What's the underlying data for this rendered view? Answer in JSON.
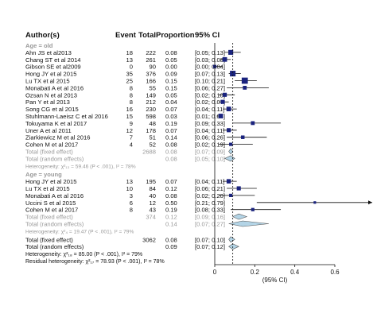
{
  "chart_data": {
    "type": "forest",
    "headers": {
      "study": "Author(s)",
      "event": "Event",
      "total": "Total",
      "proportion": "Proportion",
      "ci": "95% CI"
    },
    "axis": {
      "xlim": [
        0,
        0.6
      ],
      "ticks": [
        "0",
        "0.2",
        "0.4",
        "0.6"
      ],
      "tick_values": [
        0,
        0.2,
        0.4,
        0.6
      ],
      "label": "(95% CI)",
      "overall_estimate": 0.09
    },
    "groups": [
      {
        "name": "Age = old",
        "studies": [
          {
            "study": "Ahn JS et al2013",
            "event": "18",
            "total": "222",
            "prop": "0.08",
            "ci": "[0.05; 0.13]",
            "est": 0.08,
            "lo": 0.05,
            "hi": 0.13,
            "weight": 0.6
          },
          {
            "study": "Chang ST et al 2014",
            "event": "13",
            "total": "261",
            "prop": "0.05",
            "ci": "[0.03; 0.08]",
            "est": 0.05,
            "lo": 0.03,
            "hi": 0.08,
            "weight": 0.55
          },
          {
            "study": "Gibson SE et al2009",
            "event": "0",
            "total": "90",
            "prop": "0.00",
            "ci": "[0.00; 0.04]",
            "est": 0.0,
            "lo": 0.0,
            "hi": 0.04,
            "weight": 0.3
          },
          {
            "study": "Hong JY et al 2015",
            "event": "35",
            "total": "376",
            "prop": "0.09",
            "ci": "[0.07; 0.13]",
            "est": 0.09,
            "lo": 0.07,
            "hi": 0.13,
            "weight": 0.75
          },
          {
            "study": "Lu TX et al 2015",
            "event": "25",
            "total": "166",
            "prop": "0.15",
            "ci": "[0.10; 0.21]",
            "est": 0.15,
            "lo": 0.1,
            "hi": 0.21,
            "weight": 0.85
          },
          {
            "study": "Monabati A et al 2016",
            "event": "8",
            "total": "55",
            "prop": "0.15",
            "ci": "[0.06; 0.27]",
            "est": 0.15,
            "lo": 0.06,
            "hi": 0.27,
            "weight": 0.4
          },
          {
            "study": "Ozsan N et al 2013",
            "event": "8",
            "total": "149",
            "prop": "0.05",
            "ci": "[0.02; 0.10]",
            "est": 0.05,
            "lo": 0.02,
            "hi": 0.1,
            "weight": 0.45
          },
          {
            "study": "Pan Y et al 2013",
            "event": "8",
            "total": "212",
            "prop": "0.04",
            "ci": "[0.02; 0.07]",
            "est": 0.04,
            "lo": 0.02,
            "hi": 0.07,
            "weight": 0.45
          },
          {
            "study": "Song CG et al 2015",
            "event": "16",
            "total": "230",
            "prop": "0.07",
            "ci": "[0.04; 0.11]",
            "est": 0.07,
            "lo": 0.04,
            "hi": 0.11,
            "weight": 0.55
          },
          {
            "study": "Stuhlmann-Laeisz C et al 2016",
            "event": "15",
            "total": "598",
            "prop": "0.03",
            "ci": "[0.01; 0.04]",
            "est": 0.03,
            "lo": 0.01,
            "hi": 0.04,
            "weight": 0.55
          },
          {
            "study": "Tokuyama K et al 2017",
            "event": "9",
            "total": "48",
            "prop": "0.19",
            "ci": "[0.09; 0.33]",
            "est": 0.19,
            "lo": 0.09,
            "hi": 0.33,
            "weight": 0.4
          },
          {
            "study": "Uner A et al 2011",
            "event": "12",
            "total": "178",
            "prop": "0.07",
            "ci": "[0.04; 0.11]",
            "est": 0.07,
            "lo": 0.04,
            "hi": 0.11,
            "weight": 0.45
          },
          {
            "study": "Ziarkiewicz M et al 2016",
            "event": "7",
            "total": "51",
            "prop": "0.14",
            "ci": "[0.06; 0.26]",
            "est": 0.14,
            "lo": 0.06,
            "hi": 0.26,
            "weight": 0.35
          },
          {
            "study": "Cohen M et al 2017",
            "event": "4",
            "total": "52",
            "prop": "0.08",
            "ci": "[0.02; 0.19]",
            "est": 0.08,
            "lo": 0.02,
            "hi": 0.19,
            "weight": 0.3
          }
        ],
        "fixed": {
          "label": "Total (fixed effect)",
          "total": "2688",
          "prop": "0.08",
          "ci": "[0.07; 0.09]",
          "est": 0.08,
          "lo": 0.07,
          "hi": 0.09
        },
        "random": {
          "label": "Total (random effects)",
          "prop": "0.08",
          "ci": "[0.05; 0.10]",
          "est": 0.08,
          "lo": 0.05,
          "hi": 0.1
        },
        "heterogeneity": "Heterogeneity: χ²₁₃ = 59.46 (P < .001), I² = 78%"
      },
      {
        "name": "Age = young",
        "studies": [
          {
            "study": "Hong JY et al 2015",
            "event": "13",
            "total": "195",
            "prop": "0.07",
            "ci": "[0.04; 0.11]",
            "est": 0.07,
            "lo": 0.04,
            "hi": 0.11,
            "weight": 0.5
          },
          {
            "study": "Lu TX et al 2015",
            "event": "10",
            "total": "84",
            "prop": "0.12",
            "ci": "[0.06; 0.21]",
            "est": 0.12,
            "lo": 0.06,
            "hi": 0.21,
            "weight": 0.45
          },
          {
            "study": "Monabati A et al 2016",
            "event": "3",
            "total": "40",
            "prop": "0.08",
            "ci": "[0.02; 0.20]",
            "est": 0.08,
            "lo": 0.02,
            "hi": 0.2,
            "weight": 0.3
          },
          {
            "study": "Uccini S et al 2015",
            "event": "6",
            "total": "12",
            "prop": "0.50",
            "ci": "[0.21; 0.79]",
            "est": 0.5,
            "lo": 0.21,
            "hi": 0.79,
            "weight": 0.15
          },
          {
            "study": "Cohen M et al 2017",
            "event": "8",
            "total": "43",
            "prop": "0.19",
            "ci": "[0.08; 0.33]",
            "est": 0.19,
            "lo": 0.08,
            "hi": 0.33,
            "weight": 0.3
          }
        ],
        "fixed": {
          "label": "Total (fixed effect)",
          "total": "374",
          "prop": "0.12",
          "ci": "[0.09; 0.16]",
          "est": 0.12,
          "lo": 0.09,
          "hi": 0.16
        },
        "random": {
          "label": "Total (random effects)",
          "prop": "0.14",
          "ci": "[0.07; 0.27]",
          "est": 0.14,
          "lo": 0.07,
          "hi": 0.27
        },
        "heterogeneity": "Heterogeneity: χ²₄ = 19.47 (P < .001), I² = 79%"
      }
    ],
    "overall": {
      "fixed": {
        "label": "Total (fixed effect)",
        "total": "3062",
        "prop": "0.08",
        "ci": "[0.07; 0.10]",
        "est": 0.08,
        "lo": 0.07,
        "hi": 0.1
      },
      "random": {
        "label": "Total (random effects)",
        "prop": "0.09",
        "ci": "[0.07; 0.12]",
        "est": 0.09,
        "lo": 0.07,
        "hi": 0.12
      },
      "heterogeneity": "Heterogeneity: χ²₁₈ = 85.00 (P < .001), I² = 79%",
      "residual_heterogeneity": "Residual heterogeneity: χ²₁₇ = 78.93 (P < .001), I² = 78%"
    },
    "colors": {
      "box": "#1a237e",
      "diamond_fill": "#b3d4e6",
      "diamond_stroke": "#555555",
      "grey_text": "#999999",
      "text": "#111111",
      "line": "#111111"
    }
  }
}
